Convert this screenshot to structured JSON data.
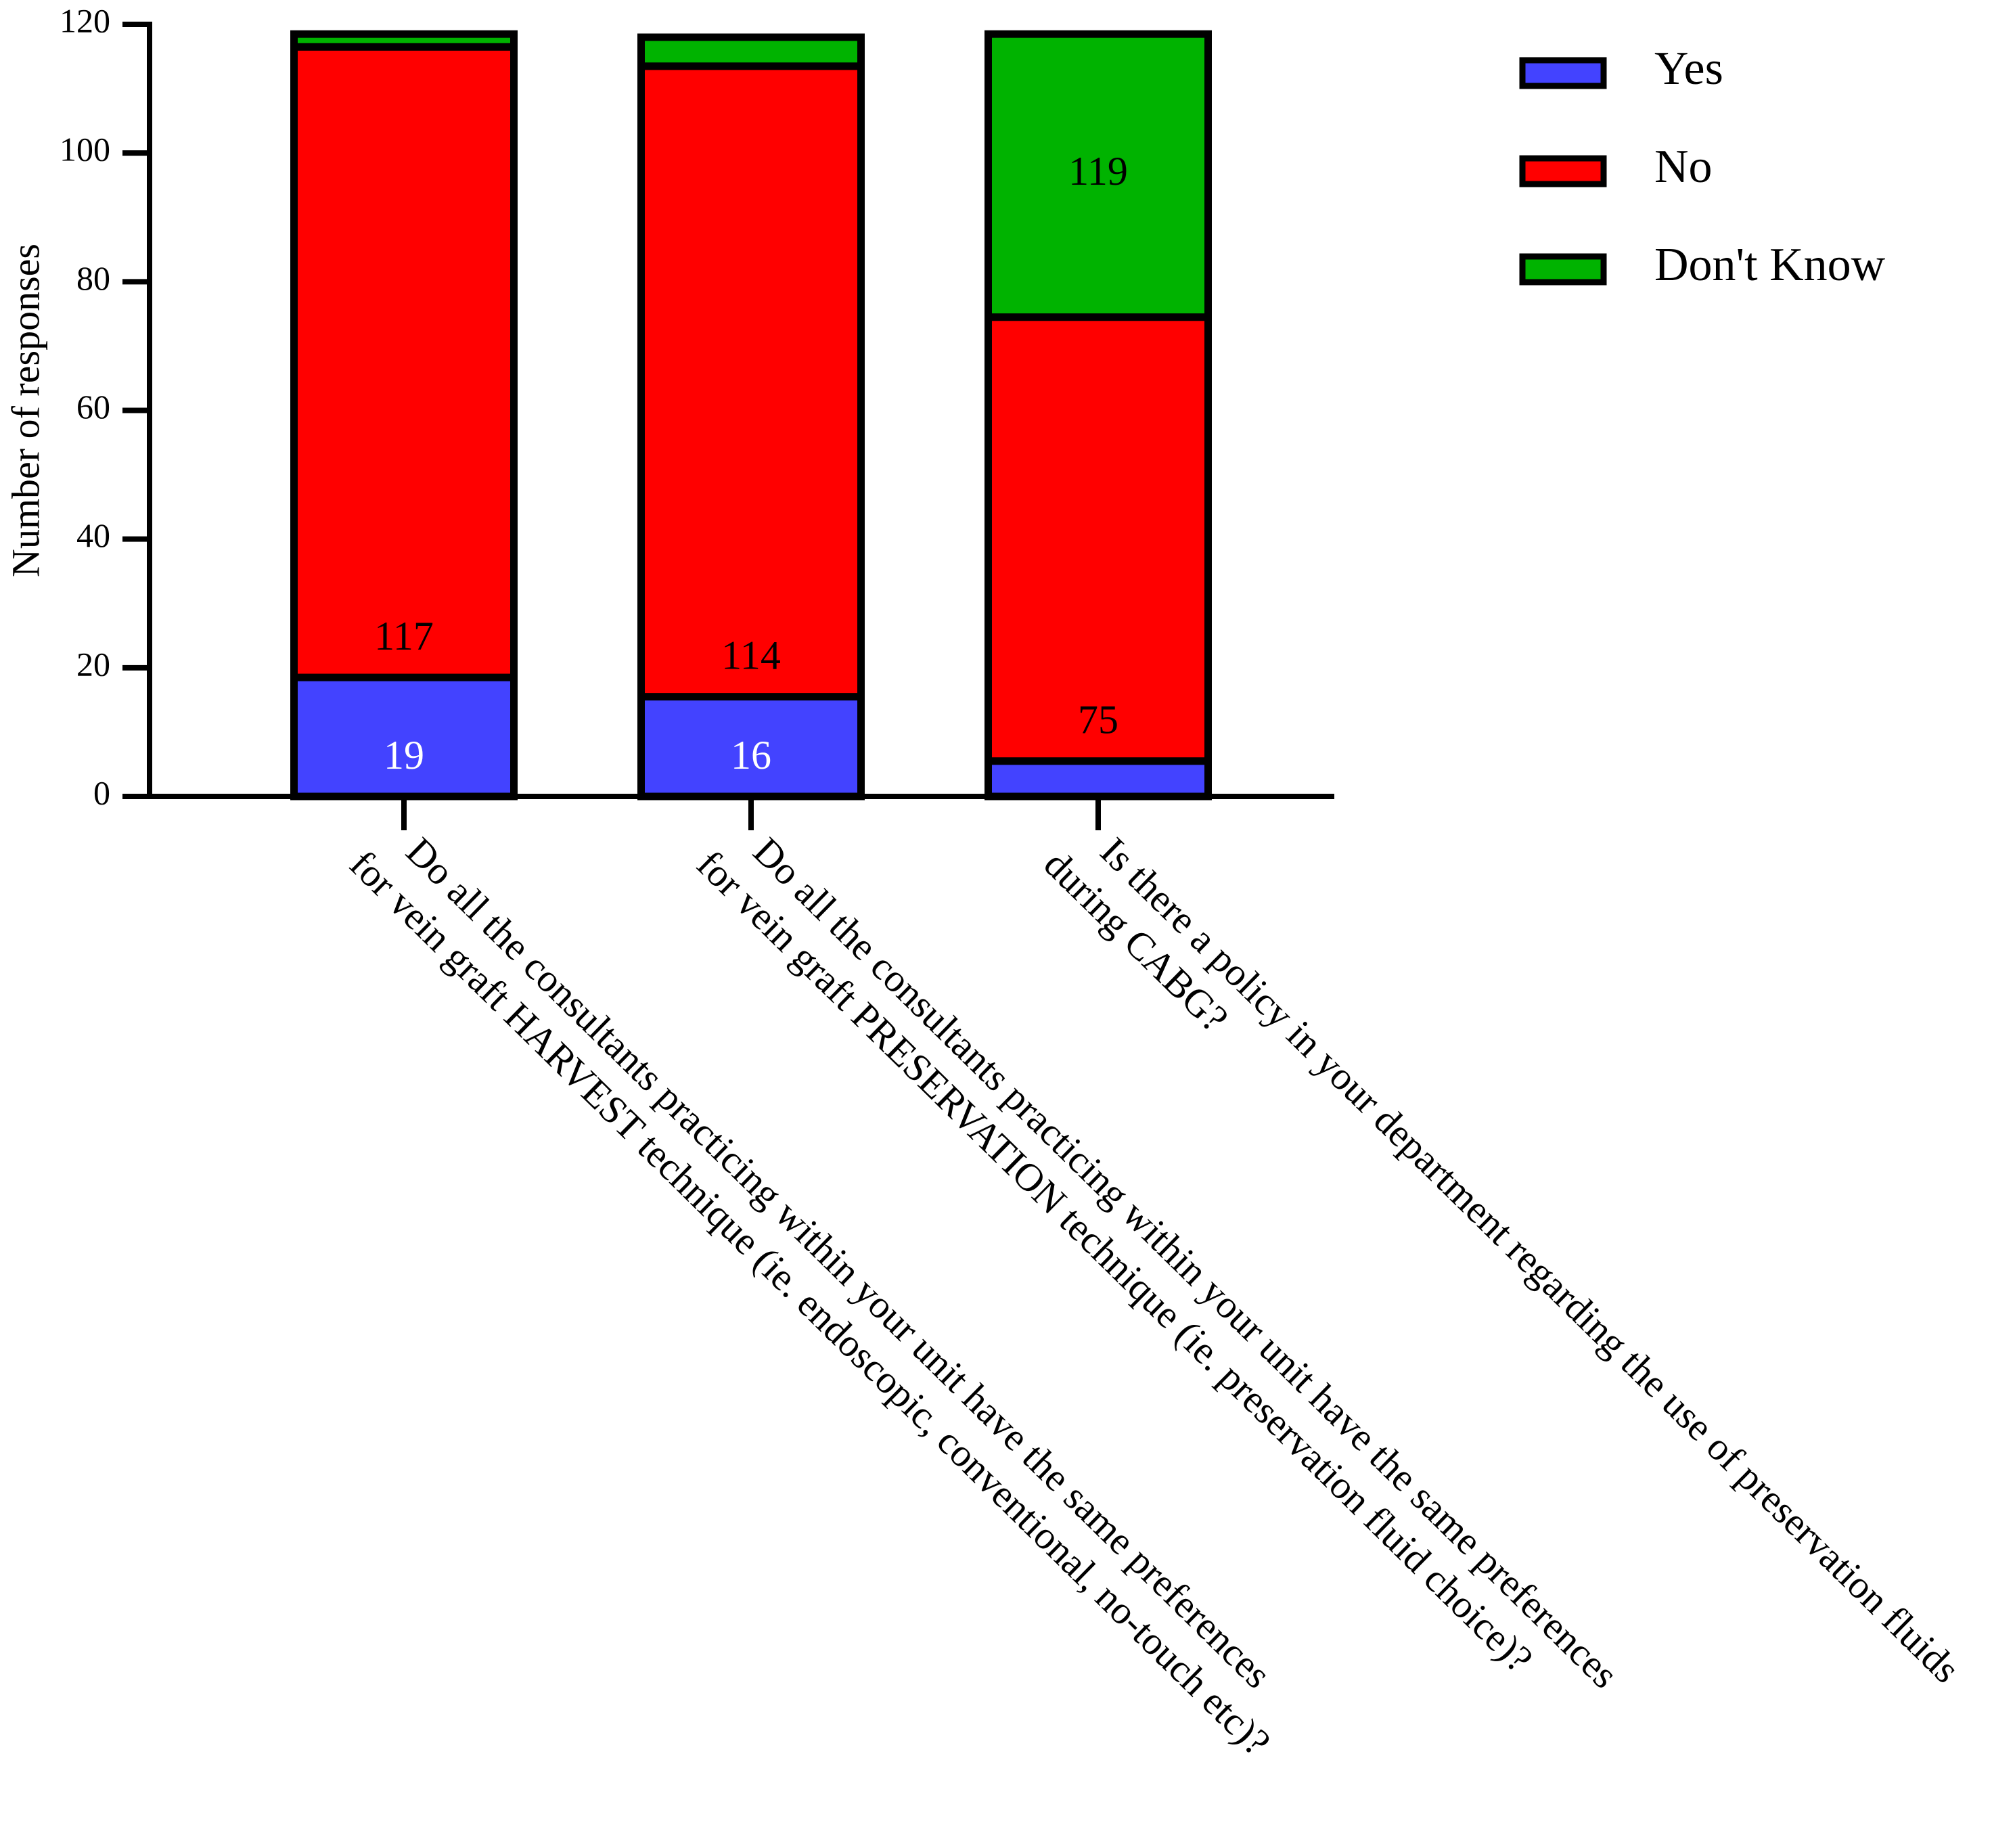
{
  "chart_data": {
    "type": "bar",
    "stacked": true,
    "categories": [
      [
        "Do all the consultants practicing within your unit have the same preferences",
        "for vein graft HARVEST technique (ie. endoscopic, conventional, no-touch etc)?"
      ],
      [
        "Do all the consultants practicing within your unit have the same preferences",
        "for vein graft PRESERVATION technique (ie. preservation fluid choice)?"
      ],
      [
        "Is there a policy in your department regarding the use of preservation fluids",
        "during CABG?"
      ]
    ],
    "series": [
      {
        "name": "Yes",
        "color": "#4343ff",
        "values": [
          18.5,
          15.5,
          5.5
        ],
        "data_labels": [
          "19",
          "16",
          ""
        ]
      },
      {
        "name": "No",
        "color": "#ff0000",
        "values": [
          98,
          98,
          69
        ],
        "data_labels": [
          "117",
          "114",
          "75"
        ]
      },
      {
        "name": "Don't Know",
        "color": "#00b300",
        "values": [
          2,
          4.5,
          44
        ],
        "data_labels": [
          "",
          "",
          "119"
        ]
      }
    ],
    "xlabel": "",
    "ylabel": "Number of responses",
    "ylim": [
      0,
      120
    ],
    "yticks": [
      "0",
      "20",
      "40",
      "60",
      "80",
      "100",
      "120"
    ],
    "legend_position": "top-right",
    "grid": false
  }
}
